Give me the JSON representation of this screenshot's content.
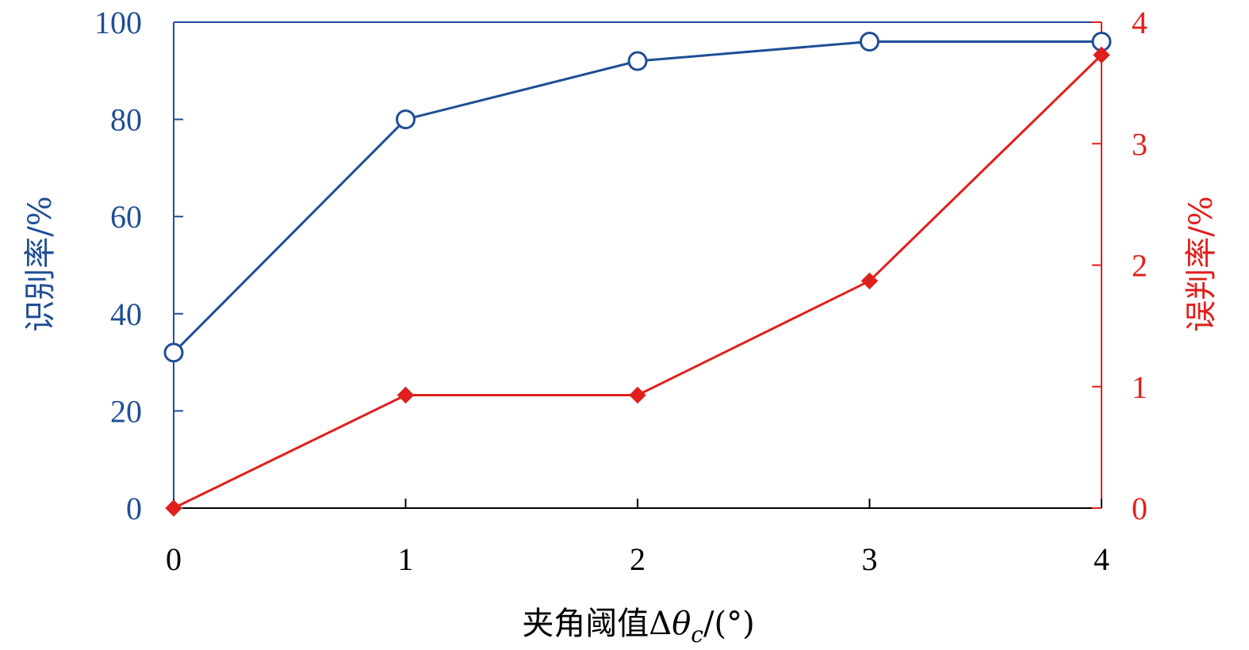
{
  "colors": {
    "left_axis": "#1f4e96",
    "right_axis": "#e0201c",
    "x_axis": "#000000"
  },
  "chart_data": {
    "type": "line",
    "x": [
      0,
      1,
      2,
      3,
      4
    ],
    "x_ticks": [
      "0",
      "1",
      "2",
      "3",
      "4"
    ],
    "xlabel_main": "夹角阈值Δ",
    "xlabel_theta": "θ",
    "xlabel_sub": "c",
    "xlabel_unit": "/(°)",
    "y_left": {
      "label": "识别率/%",
      "range": [
        0,
        100
      ],
      "ticks": [
        "0",
        "20",
        "40",
        "60",
        "80",
        "100"
      ]
    },
    "y_right": {
      "label": "误判率/%",
      "range": [
        0,
        4
      ],
      "ticks": [
        "0",
        "1",
        "2",
        "3",
        "4"
      ]
    },
    "series": [
      {
        "axis": "left",
        "marker": "circle",
        "color": "#1f4e96",
        "values": [
          32,
          80,
          92,
          96,
          96
        ]
      },
      {
        "axis": "right",
        "marker": "diamond",
        "color": "#e0201c",
        "values": [
          0,
          0.93,
          0.93,
          1.87,
          3.73
        ]
      }
    ],
    "grid": false
  }
}
